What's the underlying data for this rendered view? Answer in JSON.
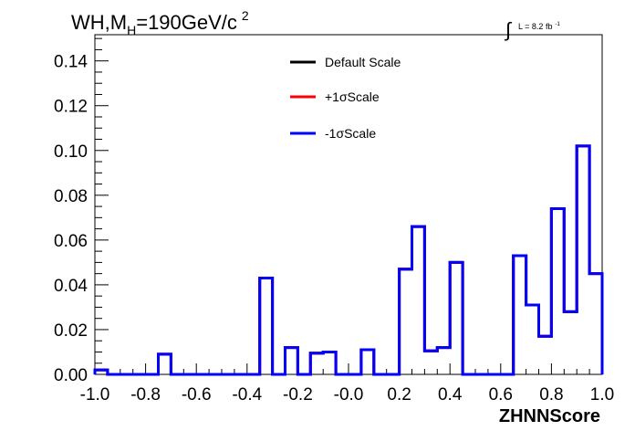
{
  "chart_data": {
    "type": "line",
    "title_main": "WH,M",
    "title_sub": "H",
    "title_rest": "=190GeV/c",
    "title_sup": "2",
    "lumi_label": "L = 8.2 fb",
    "lumi_sup": "-1",
    "xlabel": "ZHNNScore",
    "ylabel": "",
    "xlim": [
      -1.0,
      1.0
    ],
    "ylim": [
      0.0,
      0.1517
    ],
    "x_ticks": [
      -1.0,
      -0.8,
      -0.6,
      -0.4,
      -0.2,
      0.0,
      0.2,
      0.4,
      0.6,
      0.8,
      1.0
    ],
    "x_tick_labels": [
      "-1.0",
      "-0.8",
      "-0.6",
      "-0.4",
      "-0.2",
      "-0.0",
      "0.2",
      "0.4",
      "0.6",
      "0.8",
      "1.0"
    ],
    "y_ticks": [
      0.0,
      0.02,
      0.04,
      0.06,
      0.08,
      0.1,
      0.12,
      0.14
    ],
    "y_tick_labels": [
      "0.00",
      "0.02",
      "0.04",
      "0.06",
      "0.08",
      "0.10",
      "0.12",
      "0.14"
    ],
    "bin_edges": [
      -1.0,
      -0.95,
      -0.9,
      -0.85,
      -0.8,
      -0.75,
      -0.7,
      -0.65,
      -0.6,
      -0.55,
      -0.5,
      -0.45,
      -0.4,
      -0.35,
      -0.3,
      -0.25,
      -0.2,
      -0.15,
      -0.1,
      -0.05,
      0.0,
      0.05,
      0.1,
      0.15,
      0.2,
      0.25,
      0.3,
      0.35,
      0.4,
      0.45,
      0.5,
      0.55,
      0.6,
      0.65,
      0.7,
      0.75,
      0.8,
      0.85,
      0.9,
      0.95,
      1.0
    ],
    "series": [
      {
        "name": "Default Scale",
        "color": "#000000",
        "values": [
          0.002,
          0,
          0,
          0,
          0,
          0.009,
          0,
          0,
          0,
          0,
          0,
          0,
          0,
          0.043,
          0,
          0.012,
          0,
          0.0095,
          0.01,
          0,
          0,
          0.011,
          0,
          0,
          0.047,
          0.066,
          0.0105,
          0.012,
          0.05,
          0,
          0,
          0,
          0,
          0.053,
          0.031,
          0.017,
          0.074,
          0.028,
          0.102,
          0.045
        ]
      },
      {
        "name": "+1σScale",
        "color": "#ff0000",
        "values": [
          0.002,
          0,
          0,
          0,
          0,
          0.009,
          0,
          0,
          0,
          0,
          0,
          0,
          0,
          0.043,
          0,
          0.012,
          0,
          0.0095,
          0.01,
          0,
          0,
          0.011,
          0,
          0,
          0.047,
          0.066,
          0.0105,
          0.012,
          0.05,
          0,
          0,
          0,
          0,
          0.053,
          0.031,
          0.017,
          0.074,
          0.028,
          0.102,
          0.045
        ]
      },
      {
        "name": "-1σScale",
        "color": "#0000ff",
        "values": [
          0.002,
          0,
          0,
          0,
          0,
          0.009,
          0,
          0,
          0,
          0,
          0,
          0,
          0,
          0.043,
          0,
          0.012,
          0,
          0.0095,
          0.01,
          0,
          0,
          0.011,
          0,
          0,
          0.047,
          0.066,
          0.0105,
          0.012,
          0.05,
          0,
          0,
          0,
          0,
          0.053,
          0.031,
          0.017,
          0.074,
          0.028,
          0.102,
          0.045
        ]
      }
    ],
    "legend_position": "top-center",
    "grid": false
  }
}
